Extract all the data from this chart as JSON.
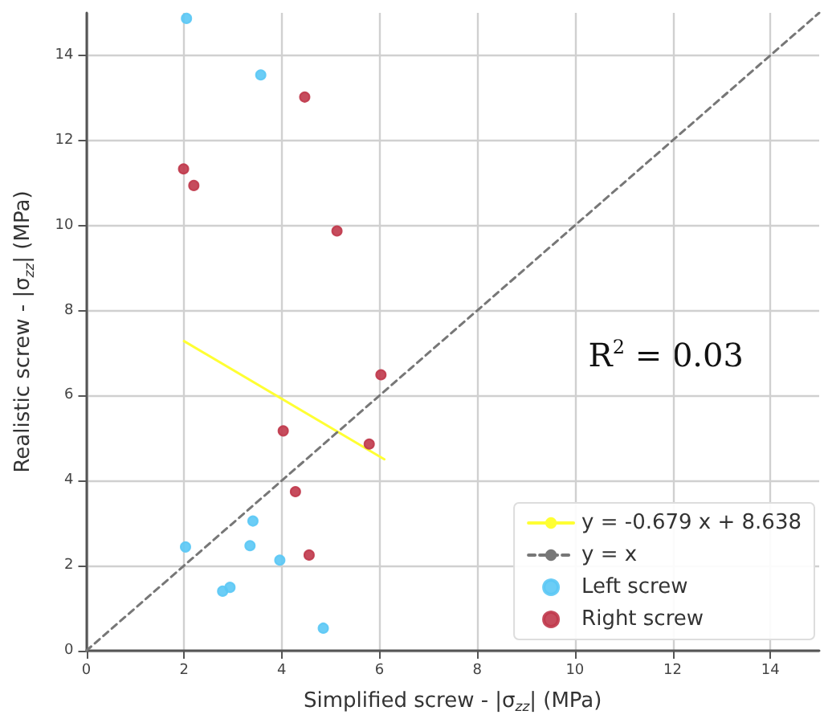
{
  "chart_data": {
    "type": "scatter",
    "xlabel": "Simplified screw - |σ$_{zz}$| (MPa)",
    "ylabel": "Realistic screw - |σ$_{zz}$| (MPa)",
    "annotations": [
      "R$^{2}$ = 0.03"
    ],
    "xlim": [
      0,
      15
    ],
    "xticks": [
      0,
      2,
      4,
      6,
      8,
      10,
      12,
      14
    ],
    "ylim": [
      0,
      15
    ],
    "yticks": [
      0,
      2,
      4,
      6,
      8,
      10,
      12,
      14
    ],
    "grid": true,
    "legend": "bottom right",
    "marker": "circle",
    "series": [
      {
        "name": "y = -0.679 x + 8.638",
        "type": "line",
        "color": "#ffff33",
        "line_style": "solid",
        "marker": "none",
        "x": [
          2.0,
          6.1
        ],
        "values": [
          7.28,
          4.5
        ]
      },
      {
        "name": "y = x",
        "type": "line",
        "color": "#777777",
        "line_style": "dashed",
        "marker": "none",
        "x": [
          0,
          15
        ],
        "values": [
          0,
          15
        ]
      },
      {
        "name": "Left screw",
        "color": "#5bc8f5",
        "x": [
          2.05,
          3.57,
          2.03,
          3.41,
          3.35,
          3.96,
          2.79,
          2.94,
          4.85
        ],
        "values": [
          14.87,
          13.54,
          2.44,
          3.05,
          2.47,
          2.13,
          1.4,
          1.49,
          0.53
        ]
      },
      {
        "name": "Right screw",
        "color": "#c0394b",
        "x": [
          4.47,
          1.99,
          2.2,
          5.13,
          6.03,
          4.03,
          5.79,
          4.28,
          4.56
        ],
        "values": [
          13.02,
          11.33,
          10.94,
          9.87,
          6.49,
          5.17,
          4.86,
          3.74,
          2.25
        ]
      }
    ]
  }
}
